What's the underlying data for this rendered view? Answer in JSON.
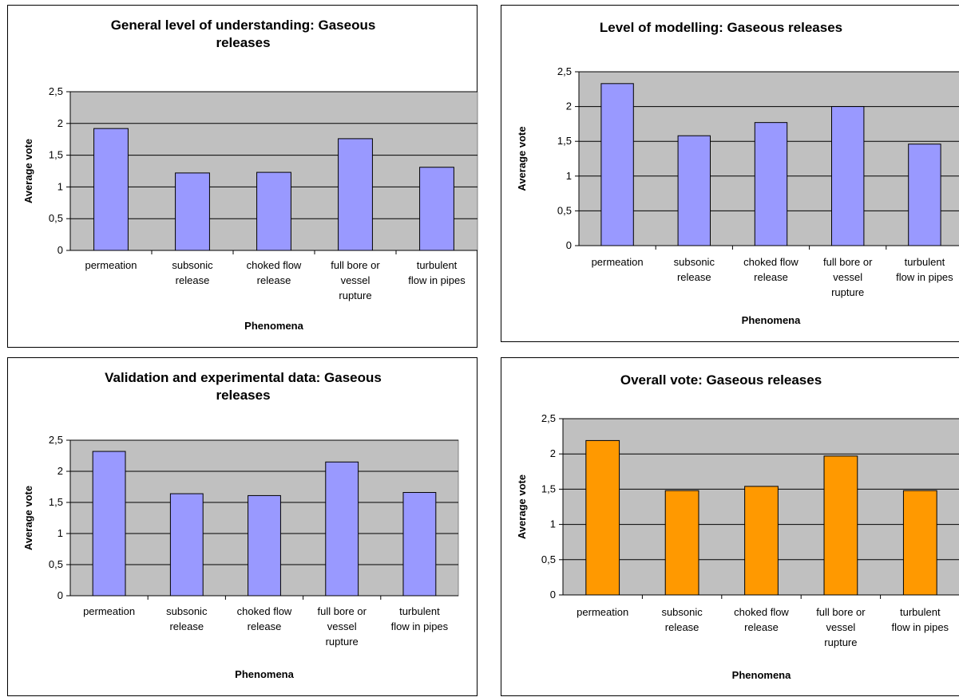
{
  "chart_data": [
    {
      "type": "bar",
      "title_lines": [
        "General level of understanding: Gaseous",
        "releases"
      ],
      "xlabel": "Phenomena",
      "ylabel": "Average vote",
      "categories": [
        [
          "permeation"
        ],
        [
          "subsonic",
          "release"
        ],
        [
          "choked flow",
          "release"
        ],
        [
          "full bore or",
          "vessel",
          "rupture"
        ],
        [
          "turbulent",
          "flow in pipes"
        ]
      ],
      "values": [
        1.92,
        1.22,
        1.23,
        1.76,
        1.31
      ],
      "ylim": [
        0,
        2.5
      ],
      "yticks": [
        "0",
        "0,5",
        "1",
        "1,5",
        "2",
        "2,5"
      ],
      "bar_color": "#9999ff",
      "grid": true
    },
    {
      "type": "bar",
      "title_lines": [
        "Level of modelling: Gaseous releases"
      ],
      "xlabel": "Phenomena",
      "ylabel": "Average vote",
      "categories": [
        [
          "permeation"
        ],
        [
          "subsonic",
          "release"
        ],
        [
          "choked flow",
          "release"
        ],
        [
          "full bore or",
          "vessel",
          "rupture"
        ],
        [
          "turbulent",
          "flow in pipes"
        ]
      ],
      "values": [
        2.33,
        1.58,
        1.77,
        2.0,
        1.46
      ],
      "ylim": [
        0,
        2.5
      ],
      "yticks": [
        "0",
        "0,5",
        "1",
        "1,5",
        "2",
        "2,5"
      ],
      "bar_color": "#9999ff",
      "grid": true
    },
    {
      "type": "bar",
      "title_lines": [
        "Validation and experimental data: Gaseous",
        "releases"
      ],
      "xlabel": "Phenomena",
      "ylabel": "Average vote",
      "categories": [
        [
          "permeation"
        ],
        [
          "subsonic",
          "release"
        ],
        [
          "choked flow",
          "release"
        ],
        [
          "full bore or",
          "vessel",
          "rupture"
        ],
        [
          "turbulent",
          "flow in pipes"
        ]
      ],
      "values": [
        2.32,
        1.64,
        1.61,
        2.15,
        1.66
      ],
      "ylim": [
        0,
        2.5
      ],
      "yticks": [
        "0",
        "0,5",
        "1",
        "1,5",
        "2",
        "2,5"
      ],
      "bar_color": "#9999ff",
      "grid": true
    },
    {
      "type": "bar",
      "title_lines": [
        "Overall vote: Gaseous releases"
      ],
      "xlabel": "Phenomena",
      "ylabel": "Average vote",
      "categories": [
        [
          "permeation"
        ],
        [
          "subsonic",
          "release"
        ],
        [
          "choked flow",
          "release"
        ],
        [
          "full bore or",
          "vessel",
          "rupture"
        ],
        [
          "turbulent",
          "flow in pipes"
        ]
      ],
      "values": [
        2.19,
        1.48,
        1.54,
        1.97,
        1.48
      ],
      "ylim": [
        0,
        2.5
      ],
      "yticks": [
        "0",
        "0,5",
        "1",
        "1,5",
        "2",
        "2,5"
      ],
      "bar_color": "#ff9900",
      "grid": true
    }
  ],
  "colors": {
    "plot_background": "#c0c0c0",
    "gridline": "#000000",
    "bar_outline": "#000000"
  }
}
